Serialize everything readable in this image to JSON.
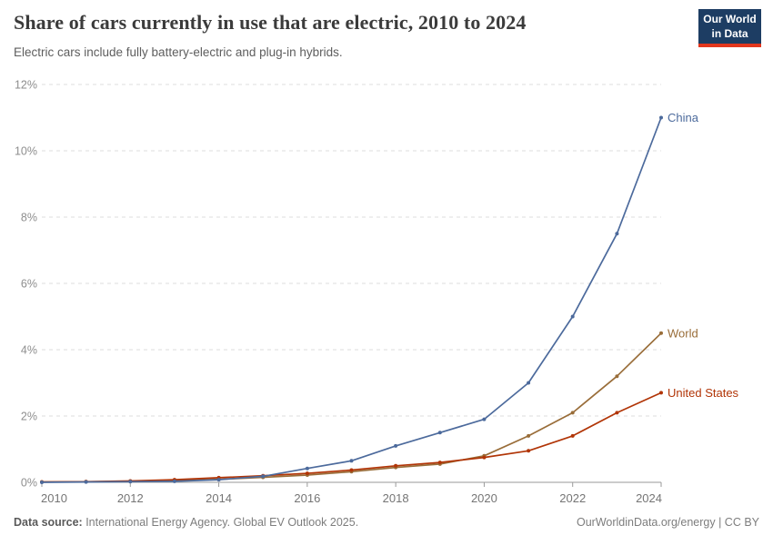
{
  "header": {
    "title": "Share of cars currently in use that are electric, 2010 to 2024",
    "subtitle": "Electric cars include fully battery-electric and plug-in hybrids.",
    "logo": {
      "line1": "Our World",
      "line2": "in Data",
      "bg_color": "#1d3d63",
      "accent_color": "#e2361d"
    }
  },
  "footer": {
    "source_label": "Data source:",
    "source_text": " International Energy Agency. Global EV Outlook 2025.",
    "right_text": "OurWorldinData.org/energy | CC BY"
  },
  "chart_data": {
    "type": "line",
    "title": "Share of cars currently in use that are electric, 2010 to 2024",
    "subtitle": "Electric cars include fully battery-electric and plug-in hybrids.",
    "xlabel": "",
    "ylabel": "",
    "x": [
      2010,
      2011,
      2012,
      2013,
      2014,
      2015,
      2016,
      2017,
      2018,
      2019,
      2020,
      2021,
      2022,
      2023,
      2024
    ],
    "series": [
      {
        "name": "World",
        "color": "#996D39",
        "values": [
          0.01,
          0.02,
          0.03,
          0.05,
          0.09,
          0.15,
          0.22,
          0.32,
          0.45,
          0.55,
          0.8,
          1.4,
          2.1,
          3.2,
          4.5
        ]
      },
      {
        "name": "United States",
        "color": "#B13507",
        "values": [
          0.01,
          0.02,
          0.04,
          0.08,
          0.14,
          0.2,
          0.27,
          0.37,
          0.5,
          0.6,
          0.75,
          0.95,
          1.4,
          2.1,
          2.7
        ]
      },
      {
        "name": "China",
        "color": "#4C6A9C",
        "values": [
          0.0,
          0.01,
          0.02,
          0.03,
          0.08,
          0.18,
          0.42,
          0.65,
          1.1,
          1.5,
          1.9,
          3.0,
          5.0,
          7.5,
          11.0
        ]
      }
    ],
    "xlim": [
      2010,
      2024
    ],
    "ylim": [
      0,
      12
    ],
    "yticks": [
      0,
      2,
      4,
      6,
      8,
      10,
      12
    ],
    "ytick_format": "{}%",
    "xticks": [
      2010,
      2012,
      2014,
      2016,
      2018,
      2020,
      2022,
      2024
    ],
    "grid": "horizontal-dashed",
    "legend_position": "end-of-line-labels",
    "grid_color": "#dcdcdc",
    "axis_line_color": "#9a9a9a",
    "ytick_label_color": "#8e8e8e",
    "xtick_label_color": "#757575"
  }
}
